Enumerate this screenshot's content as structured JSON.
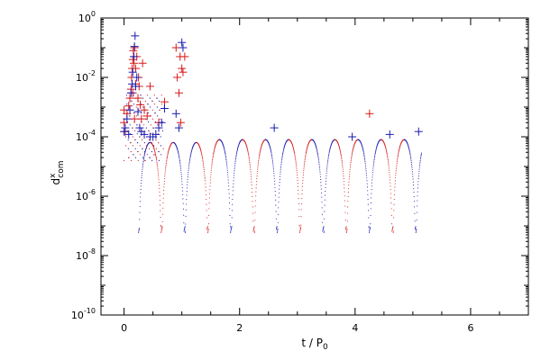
{
  "chart_data": {
    "type": "scatter",
    "x_axis": {
      "label_main": "t / P",
      "label_sub": "0",
      "range": [
        -0.4,
        7.0
      ],
      "ticks": [
        0,
        2,
        4,
        6
      ],
      "tick_labels": [
        "0",
        "2",
        "4",
        "6"
      ]
    },
    "y_axis": {
      "scale": "log",
      "label_main": "d",
      "label_sup": "x",
      "label_sub": "com",
      "range_exp": [
        -10,
        0
      ],
      "major_ticks_exp": [
        -10,
        -8,
        -6,
        -4,
        -2,
        0
      ],
      "tick_base": "10",
      "tick_exponents": [
        "-10",
        "-8",
        "-6",
        "-4",
        "-2",
        "0"
      ]
    },
    "grid": false,
    "colors": {
      "series_a": "#d61a1a",
      "series_b": "#1a1ab0",
      "axis": "#000000"
    },
    "oscillation": {
      "period": 0.4,
      "upper_level": 0.0001,
      "upper_level_later": 8e-05,
      "dot_floor": 1e-07,
      "t_start": 0.25,
      "t_end": 5.15
    },
    "crosses_red": [
      [
        0.0,
        0.0008
      ],
      [
        0.0,
        0.0003
      ],
      [
        0.02,
        0.00015
      ],
      [
        0.05,
        0.0006
      ],
      [
        0.08,
        0.0011
      ],
      [
        0.1,
        0.002
      ],
      [
        0.12,
        0.004
      ],
      [
        0.13,
        0.01
      ],
      [
        0.14,
        0.02
      ],
      [
        0.15,
        0.003
      ],
      [
        0.15,
        0.04
      ],
      [
        0.16,
        0.08
      ],
      [
        0.17,
        0.03
      ],
      [
        0.18,
        0.1
      ],
      [
        0.18,
        0.0004
      ],
      [
        0.2,
        0.02
      ],
      [
        0.2,
        0.006
      ],
      [
        0.22,
        0.05
      ],
      [
        0.24,
        0.002
      ],
      [
        0.25,
        0.01
      ],
      [
        0.26,
        0.005
      ],
      [
        0.28,
        0.0012
      ],
      [
        0.3,
        0.0004
      ],
      [
        0.32,
        0.03
      ],
      [
        0.35,
        0.0008
      ],
      [
        0.4,
        0.0005
      ],
      [
        0.45,
        0.005
      ],
      [
        0.6,
        0.0003
      ],
      [
        0.7,
        0.0015
      ],
      [
        0.9,
        0.1
      ],
      [
        0.92,
        0.01
      ],
      [
        0.95,
        0.003
      ],
      [
        0.97,
        0.05
      ],
      [
        0.98,
        0.0003
      ],
      [
        1.0,
        0.02
      ],
      [
        1.02,
        0.015
      ],
      [
        1.05,
        0.05
      ],
      [
        4.25,
        0.0006
      ]
    ],
    "crosses_blue": [
      [
        0.0,
        0.00015
      ],
      [
        0.02,
        0.0002
      ],
      [
        0.05,
        0.0004
      ],
      [
        0.08,
        0.00012
      ],
      [
        0.1,
        0.0008
      ],
      [
        0.12,
        0.003
      ],
      [
        0.14,
        0.006
      ],
      [
        0.15,
        0.015
      ],
      [
        0.17,
        0.05
      ],
      [
        0.18,
        0.11
      ],
      [
        0.19,
        0.25
      ],
      [
        0.2,
        0.005
      ],
      [
        0.22,
        0.01
      ],
      [
        0.24,
        0.0007
      ],
      [
        0.27,
        0.0002
      ],
      [
        0.3,
        0.00015
      ],
      [
        0.35,
        0.00012
      ],
      [
        0.45,
        0.0001
      ],
      [
        0.5,
        0.0001
      ],
      [
        0.55,
        0.00012
      ],
      [
        0.6,
        0.0002
      ],
      [
        0.65,
        0.0003
      ],
      [
        0.7,
        0.0009
      ],
      [
        0.9,
        0.0006
      ],
      [
        0.95,
        0.0002
      ],
      [
        1.0,
        0.15
      ],
      [
        1.02,
        0.1
      ],
      [
        2.6,
        0.0002
      ],
      [
        3.95,
        0.0001
      ],
      [
        4.6,
        0.00012
      ],
      [
        5.1,
        0.00015
      ]
    ]
  }
}
